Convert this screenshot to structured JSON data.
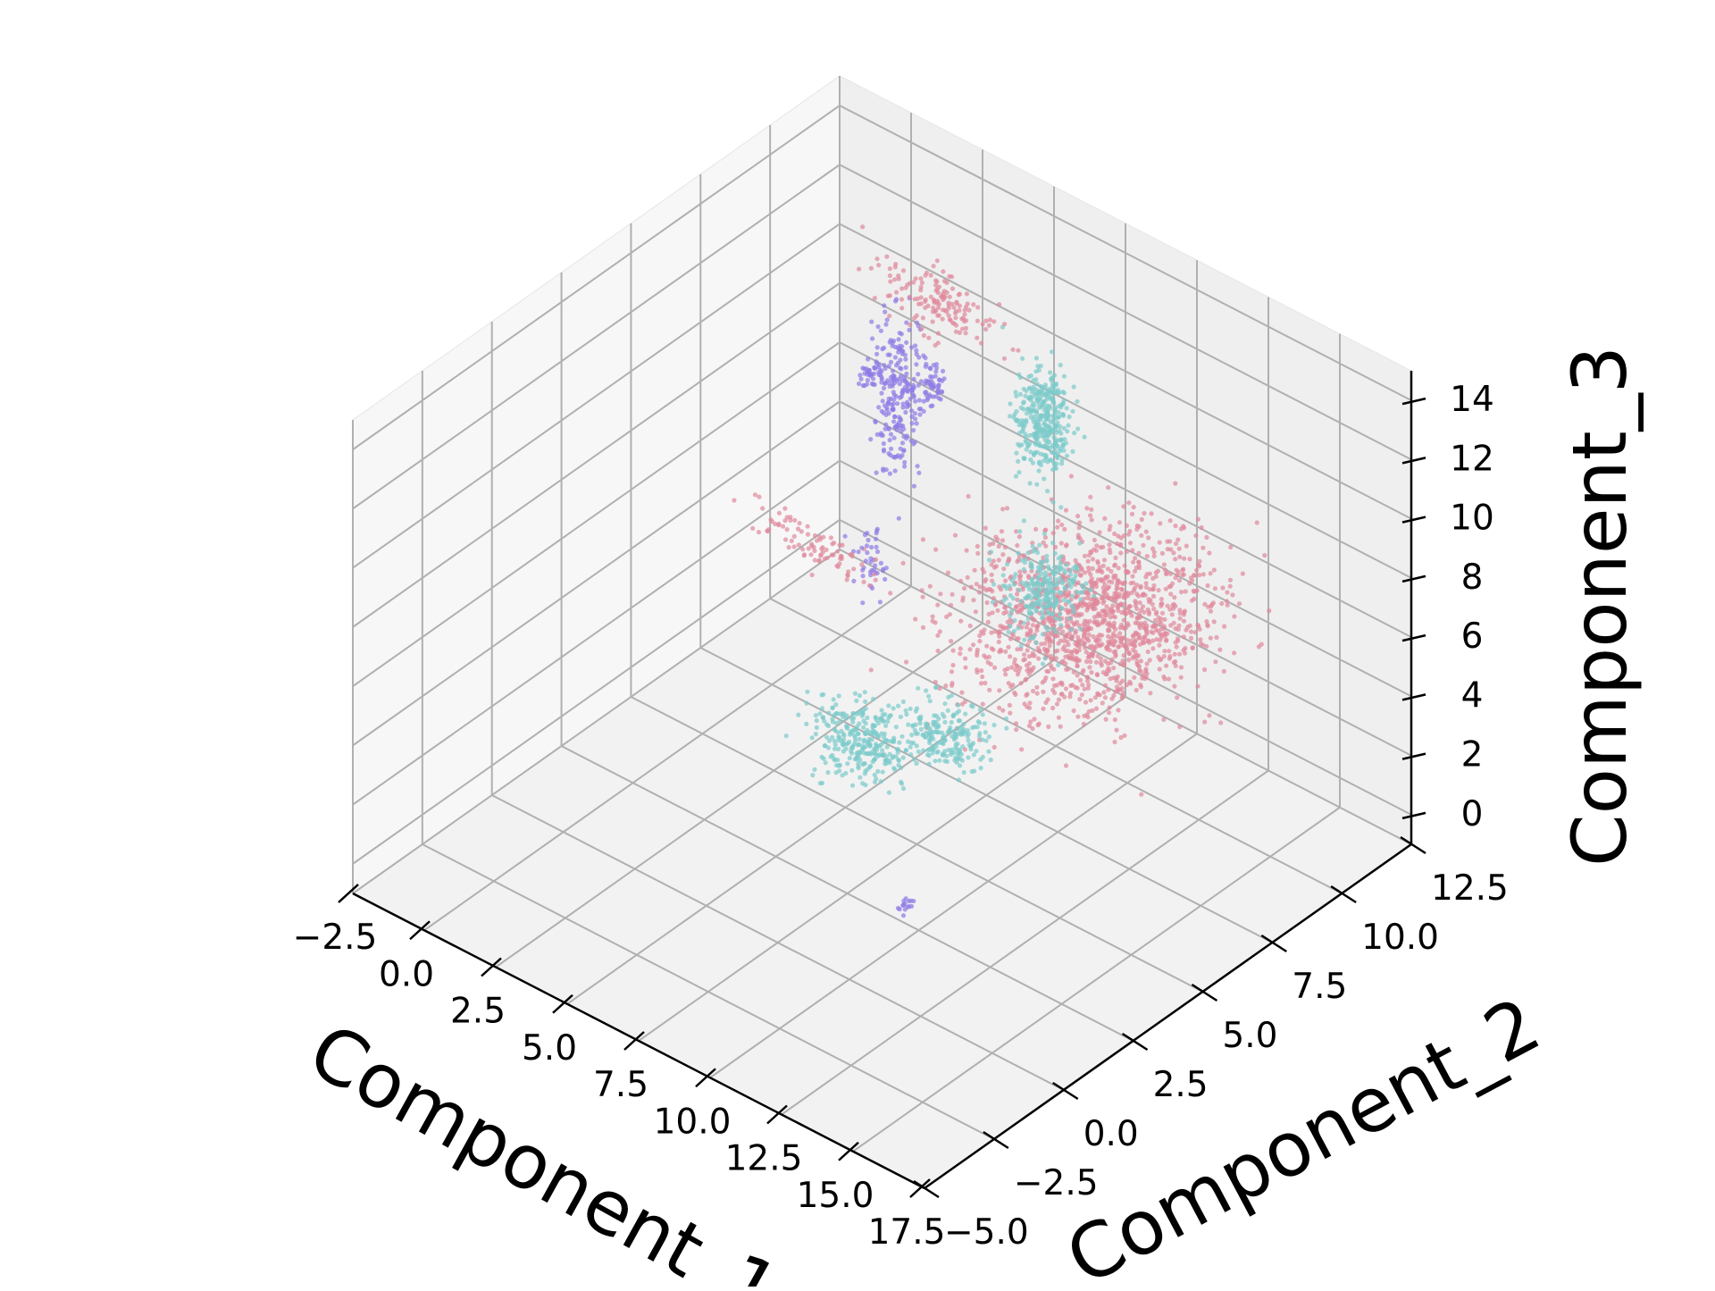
{
  "chart_data": {
    "type": "scatter",
    "projection": "3d",
    "grid": true,
    "legend": "none",
    "axes": {
      "x": {
        "label": "Component_1",
        "range": [
          -2.5,
          17.5
        ],
        "ticks": [
          "−2.5",
          "0.0",
          "2.5",
          "5.0",
          "7.5",
          "10.0",
          "12.5",
          "15.0",
          "17.5"
        ]
      },
      "y": {
        "label": "Component_2",
        "range": [
          -5.0,
          12.5
        ],
        "ticks": [
          "−5.0",
          "−2.5",
          "0.0",
          "2.5",
          "5.0",
          "7.5",
          "10.0",
          "12.5"
        ]
      },
      "z": {
        "label": "Component_3",
        "range": [
          -1,
          15
        ],
        "ticks": [
          "0",
          "2",
          "4",
          "6",
          "8",
          "10",
          "12",
          "14"
        ]
      }
    },
    "colors": {
      "pink": "#e0899b",
      "teal": "#7ccbcb",
      "purple": "#8f7ae6",
      "pane": "#f2f2f2",
      "grid": "#b0b0b0"
    },
    "clusters": [
      {
        "color": "pink",
        "x": 13,
        "y": 5.5,
        "z": 9,
        "spread": [
          1.6,
          1.6,
          0.9
        ],
        "count": 1400
      },
      {
        "color": "teal",
        "x": 9,
        "y": 8,
        "z": 12,
        "spread": [
          0.4,
          0.3,
          0.9
        ],
        "count": 350
      },
      {
        "color": "teal",
        "x": 10.5,
        "y": 6.5,
        "z": 8,
        "spread": [
          0.5,
          0.5,
          0.7
        ],
        "count": 250
      },
      {
        "color": "teal",
        "x": 8.5,
        "y": 2,
        "z": 5,
        "spread": [
          0.7,
          0.5,
          0.5
        ],
        "count": 300
      },
      {
        "color": "teal",
        "x": 10.5,
        "y": 3,
        "z": 5.5,
        "spread": [
          0.6,
          0.4,
          0.5
        ],
        "count": 200
      },
      {
        "color": "purple",
        "x": 2,
        "y": 10,
        "z": 8,
        "spread": [
          0.3,
          0.3,
          1.4
        ],
        "count": 220
      },
      {
        "color": "purple",
        "x": 4,
        "y": 9,
        "z": 10,
        "spread": [
          0.2,
          0.2,
          0.4
        ],
        "count": 60
      },
      {
        "color": "purple",
        "x": 0.5,
        "y": 10.5,
        "z": 7.8,
        "spread": [
          0.15,
          0.15,
          0.2
        ],
        "count": 40
      },
      {
        "color": "purple",
        "x": 4,
        "y": 7,
        "z": 5.5,
        "spread": [
          0.2,
          0.2,
          0.5
        ],
        "count": 40
      },
      {
        "color": "pink",
        "x": 3.5,
        "y": 10,
        "z": 12,
        "spread": [
          1,
          0.3,
          0.5
        ],
        "count": 150
      },
      {
        "color": "pink",
        "x": 2,
        "y": 7,
        "z": 5,
        "spread": [
          1,
          0.2,
          0.3
        ],
        "count": 90
      },
      {
        "color": "purple",
        "x": 12,
        "y": 0,
        "z": 2.5,
        "spread": [
          0.1,
          0.1,
          0.1
        ],
        "count": 15
      }
    ]
  }
}
